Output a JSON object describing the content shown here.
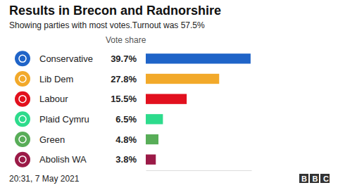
{
  "chart_data": {
    "type": "bar",
    "orientation": "horizontal",
    "title": "Results in Brecon and Radnorshire",
    "subtitle": "Showing parties with most votes.Turnout was 57.5%",
    "xlabel": "Vote share",
    "footer": "20:31, 7 May 2021",
    "source": "BBC",
    "categories": [
      "Conservative",
      "Lib Dem",
      "Labour",
      "Plaid Cymru",
      "Green",
      "Abolish WA"
    ],
    "values": [
      39.7,
      27.8,
      15.5,
      6.5,
      4.8,
      3.8
    ],
    "value_labels": [
      "39.7%",
      "27.8%",
      "15.5%",
      "6.5%",
      "4.8%",
      "3.8%"
    ],
    "colors": [
      "#1f64c8",
      "#f2a92a",
      "#e2101e",
      "#2ddb8c",
      "#58ad58",
      "#9b1a47"
    ],
    "xlim": [
      0,
      40
    ],
    "xticks": [],
    "data_labels": true,
    "tick_labels": "y"
  }
}
